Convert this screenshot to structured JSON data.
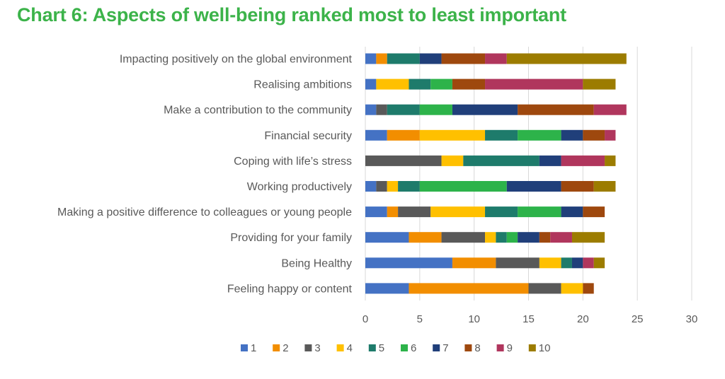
{
  "chart_data": {
    "type": "bar",
    "orientation": "horizontal",
    "stacked": true,
    "title": "Chart 6: Aspects of well-being ranked most to least important",
    "categories": [
      "Impacting positively on the global environment",
      "Realising ambitions",
      "Make a contribution to the community",
      "Financial security",
      "Coping with life’s stress",
      "Working productively",
      "Making a positive difference to colleagues or young people",
      "Providing for your family",
      "Being Healthy",
      "Feeling happy or content"
    ],
    "series": [
      {
        "name": "1",
        "color": "#4472c4",
        "values": [
          1,
          1,
          1,
          2,
          0,
          1,
          2,
          4,
          8,
          4
        ]
      },
      {
        "name": "2",
        "color": "#f28e00",
        "values": [
          1,
          0,
          0,
          3,
          0,
          0,
          1,
          3,
          4,
          11
        ]
      },
      {
        "name": "3",
        "color": "#595959",
        "values": [
          0,
          0,
          1,
          0,
          7,
          1,
          3,
          4,
          4,
          3
        ]
      },
      {
        "name": "4",
        "color": "#ffc000",
        "values": [
          0,
          3,
          0,
          6,
          2,
          1,
          5,
          1,
          2,
          2
        ]
      },
      {
        "name": "5",
        "color": "#1e7b6b",
        "values": [
          3,
          2,
          3,
          3,
          7,
          2,
          3,
          1,
          1,
          0
        ]
      },
      {
        "name": "6",
        "color": "#2db34a",
        "values": [
          0,
          2,
          3,
          4,
          0,
          8,
          4,
          1,
          0,
          0
        ]
      },
      {
        "name": "7",
        "color": "#203f7a",
        "values": [
          2,
          0,
          6,
          2,
          2,
          5,
          2,
          2,
          1,
          0
        ]
      },
      {
        "name": "8",
        "color": "#9e480e",
        "values": [
          4,
          3,
          7,
          2,
          0,
          3,
          2,
          1,
          0,
          1
        ]
      },
      {
        "name": "9",
        "color": "#b0365d",
        "values": [
          2,
          9,
          3,
          1,
          4,
          0,
          0,
          2,
          1,
          0
        ]
      },
      {
        "name": "10",
        "color": "#9c7c00",
        "values": [
          11,
          3,
          0,
          0,
          1,
          2,
          0,
          3,
          1,
          0
        ]
      }
    ],
    "xlim": [
      0,
      30
    ],
    "xticks": [
      0,
      5,
      10,
      15,
      20,
      25,
      30
    ],
    "grid": true,
    "legend_position": "bottom"
  }
}
